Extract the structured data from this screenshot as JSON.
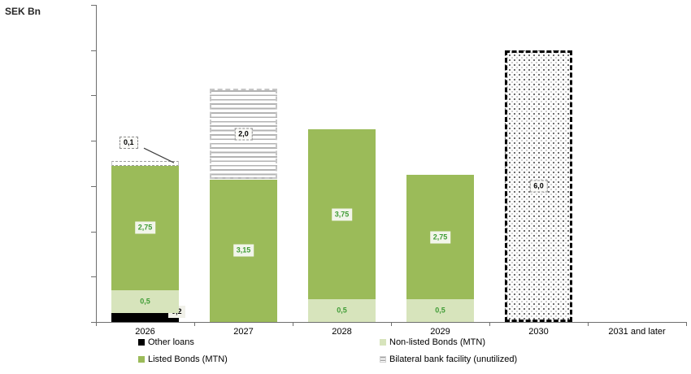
{
  "title": "SEK Bn",
  "colors": {
    "listed_bonds": "#9bbb59",
    "non_listed_bonds": "#d7e4bc",
    "other_loans": "#000000",
    "value_label_green": "#3f9c35",
    "axis": "#6e6e6e"
  },
  "chart_data": {
    "type": "bar",
    "stacked": true,
    "title": "SEK Bn",
    "categories": [
      "2026",
      "2027",
      "2028",
      "2029",
      "2030",
      "2031 and later"
    ],
    "ylim": [
      0,
      7
    ],
    "ytick_interval": 1,
    "yticks_labeled": false,
    "grid": false,
    "legend_position": "bottom",
    "bars": [
      {
        "category": "2026",
        "segments": [
          {
            "value": 0.2,
            "label": "0,2",
            "style": "other-loans",
            "label_mode": "side-box"
          },
          {
            "value": 0.5,
            "label": "0,5",
            "style": "non-listed",
            "label_mode": "plain"
          },
          {
            "value": 2.75,
            "label": "2,75",
            "style": "listed",
            "label_mode": "box"
          },
          {
            "value": 0.1,
            "label": "0,1",
            "style": "hatch",
            "label_mode": "callout"
          }
        ]
      },
      {
        "category": "2027",
        "segments": [
          {
            "value": 3.15,
            "label": "3,15",
            "style": "listed",
            "label_mode": "box"
          },
          {
            "value": 2.0,
            "label": "2,0",
            "style": "hatch",
            "label_mode": "dashed-box"
          }
        ]
      },
      {
        "category": "2028",
        "segments": [
          {
            "value": 0.5,
            "label": "0,5",
            "style": "non-listed",
            "label_mode": "plain"
          },
          {
            "value": 3.75,
            "label": "3,75",
            "style": "listed",
            "label_mode": "box"
          }
        ]
      },
      {
        "category": "2029",
        "segments": [
          {
            "value": 0.5,
            "label": "0,5",
            "style": "non-listed",
            "label_mode": "plain"
          },
          {
            "value": 2.75,
            "label": "2,75",
            "style": "listed",
            "label_mode": "box"
          }
        ]
      },
      {
        "category": "2030",
        "segments": [
          {
            "value": 6.0,
            "label": "6,0",
            "style": "dots",
            "label_mode": "dashed-box"
          }
        ]
      },
      {
        "category": "2031 and later",
        "segments": []
      }
    ]
  },
  "legend": {
    "columns": [
      [
        {
          "label": "Other loans",
          "style": "other-loans"
        },
        {
          "label": "Listed Bonds (MTN)",
          "style": "listed"
        }
      ],
      [
        {
          "label": "Non-listed Bonds (MTN)",
          "style": "non-listed"
        },
        {
          "label": "Bilateral bank facility (unutilized)",
          "style": "hatch"
        }
      ]
    ]
  }
}
